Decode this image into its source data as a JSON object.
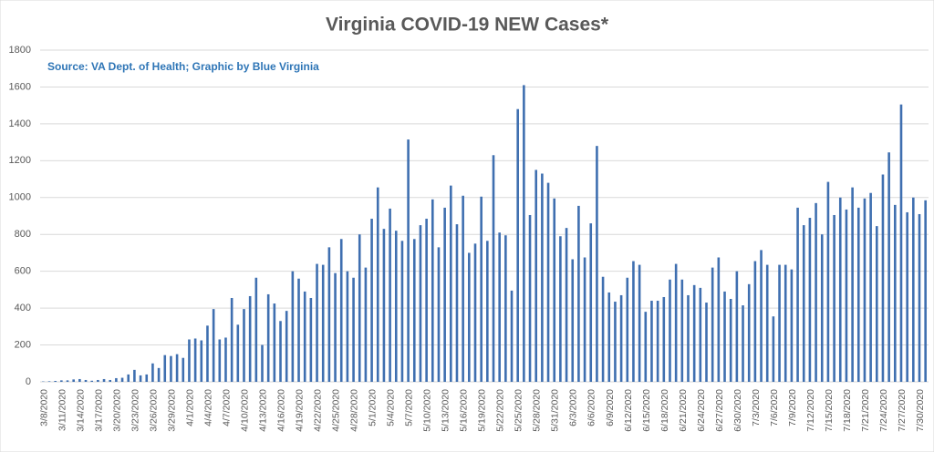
{
  "chart_data": {
    "type": "bar",
    "title": "Virginia COVID-19 NEW Cases*",
    "subtitle": "Source: VA Dept. of Health; Graphic by Blue Virginia",
    "categories": [
      "3/8/2020",
      null,
      null,
      "3/11/2020",
      null,
      null,
      "3/14/2020",
      null,
      null,
      "3/17/2020",
      null,
      null,
      "3/20/2020",
      null,
      null,
      "3/23/2020",
      null,
      null,
      "3/26/2020",
      null,
      null,
      "3/29/2020",
      null,
      null,
      "4/1/2020",
      null,
      null,
      "4/4/2020",
      null,
      null,
      "4/7/2020",
      null,
      null,
      "4/10/2020",
      null,
      null,
      "4/13/2020",
      null,
      null,
      "4/16/2020",
      null,
      null,
      "4/19/2020",
      null,
      null,
      "4/22/2020",
      null,
      null,
      "4/25/2020",
      null,
      null,
      "4/28/2020",
      null,
      null,
      "5/1/2020",
      null,
      null,
      "5/4/2020",
      null,
      null,
      "5/7/2020",
      null,
      null,
      "5/10/2020",
      null,
      null,
      "5/13/2020",
      null,
      null,
      "5/16/2020",
      null,
      null,
      "5/19/2020",
      null,
      null,
      "5/22/2020",
      null,
      null,
      "5/25/2020",
      null,
      null,
      "5/28/2020",
      null,
      null,
      "5/31/2020",
      null,
      null,
      "6/3/2020",
      null,
      null,
      "6/6/2020",
      null,
      null,
      "6/9/2020",
      null,
      null,
      "6/12/2020",
      null,
      null,
      "6/15/2020",
      null,
      null,
      "6/18/2020",
      null,
      null,
      "6/21/2020",
      null,
      null,
      "6/24/2020",
      null,
      null,
      "6/27/2020",
      null,
      null,
      "6/30/2020",
      null,
      null,
      "7/3/2020",
      null,
      null,
      "7/6/2020",
      null,
      null,
      "7/9/2020",
      null,
      null,
      "7/12/2020",
      null,
      null,
      "7/15/2020",
      null,
      null,
      "7/18/2020",
      null,
      null,
      "7/21/2020",
      null,
      null,
      "7/24/2020",
      null,
      null,
      "7/27/2020",
      null,
      null,
      "7/30/2020",
      null
    ],
    "values": [
      2,
      3,
      5,
      8,
      8,
      13,
      15,
      10,
      6,
      10,
      15,
      10,
      20,
      22,
      40,
      65,
      35,
      40,
      100,
      75,
      145,
      140,
      150,
      130,
      230,
      235,
      225,
      305,
      395,
      230,
      240,
      455,
      310,
      395,
      465,
      565,
      200,
      475,
      425,
      330,
      385,
      600,
      560,
      490,
      455,
      640,
      635,
      730,
      590,
      775,
      600,
      565,
      800,
      620,
      885,
      1055,
      830,
      940,
      820,
      765,
      1315,
      775,
      850,
      885,
      990,
      730,
      945,
      1065,
      855,
      1010,
      700,
      750,
      1005,
      765,
      1230,
      810,
      795,
      495,
      1480,
      1610,
      905,
      1150,
      1130,
      1080,
      995,
      790,
      835,
      665,
      955,
      675,
      860,
      1280,
      570,
      485,
      435,
      470,
      565,
      655,
      635,
      380,
      440,
      440,
      460,
      555,
      640,
      555,
      470,
      525,
      510,
      430,
      620,
      675,
      490,
      450,
      600,
      415,
      530,
      655,
      715,
      635,
      355,
      635,
      635,
      610,
      945,
      850,
      890,
      970,
      800,
      1085,
      905,
      1000,
      935,
      1055,
      945,
      995,
      1025,
      845,
      1125,
      1245,
      960,
      1505,
      920,
      1000,
      910,
      985
    ],
    "color": "#3f6fb0",
    "ylim": [
      0,
      1800
    ],
    "yticks": [
      0,
      200,
      400,
      600,
      800,
      1000,
      1200,
      1400,
      1600,
      1800
    ],
    "grid": true
  }
}
